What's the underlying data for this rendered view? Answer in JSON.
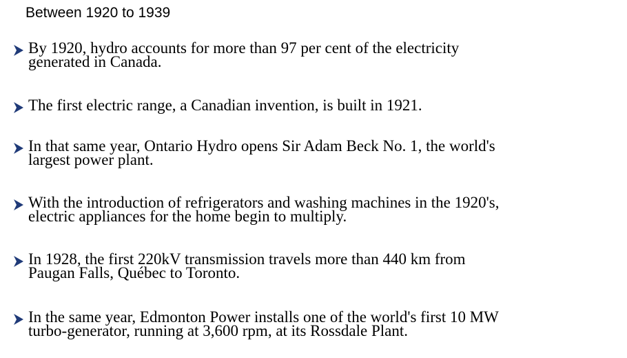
{
  "slide": {
    "heading": "Between 1920 to 1939",
    "bullet_icon": "right-arrowhead-icon",
    "bullet_color": "#1f3a78",
    "bullets": [
      {
        "line1": "By 1920, hydro accounts for more than 97 per cent of the electricity",
        "line2": "generated in Canada."
      },
      {
        "line1": "The first electric range, a Canadian invention, is built in 1921.",
        "line2": ""
      },
      {
        "line1": "In that same year, Ontario Hydro opens Sir Adam Beck No. 1, the world's",
        "line2": "largest power plant."
      },
      {
        "line1": "With the introduction of refrigerators and washing machines in the 1920's,",
        "line2": "electric appliances for the home begin to multiply."
      },
      {
        "line1": "In 1928, the first 220kV transmission travels more than 440 km from",
        "line2": "Paugan Falls, Québec to Toronto."
      },
      {
        "line1": "In the same year, Edmonton Power installs one of the world's first 10 MW",
        "line2": "turbo-generator, running at 3,600 rpm, at its Rossdale Plant."
      }
    ]
  }
}
